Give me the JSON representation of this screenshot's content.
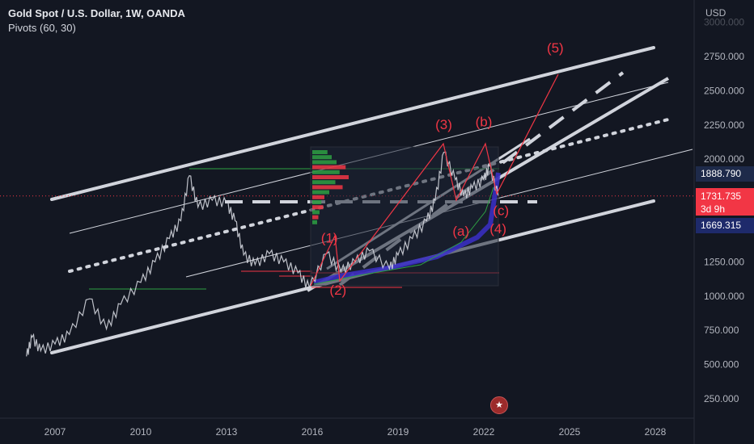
{
  "header": {
    "title": "Gold Spot / U.S. Dollar, 1W, OANDA",
    "indicator": "Pivots (60, 30)"
  },
  "price_axis": {
    "currency": "USD",
    "ticks": [
      "3000.000",
      "2750.000",
      "2500.000",
      "2250.000",
      "2000.000",
      "1750.000",
      "1500.000",
      "1250.000",
      "1000.000",
      "750.000",
      "500.000",
      "250.000"
    ]
  },
  "badges": {
    "pivot_upper": "1888.790",
    "price": "1731.735",
    "countdown": "3d 9h",
    "pivot_lower": "1669.315"
  },
  "colors": {
    "background": "#131722",
    "price_line": "#d1d4dc",
    "wave_labels": "#f23645",
    "channel": "#d1d4dc",
    "pivot_upper_badge": "#1e2a4a",
    "price_badge": "#f23645",
    "pivot_lower_badge": "#1e2a6b",
    "volume_up": "#2ea043",
    "volume_down": "#f23645",
    "indicator_band": "#3b2fc9"
  },
  "flag_icon": "us-flag-icon",
  "chart_data": {
    "type": "line",
    "title": "Gold Spot / U.S. Dollar, 1W, OANDA",
    "xlabel": "",
    "ylabel": "",
    "x_ticks": [
      "2007",
      "2010",
      "2013",
      "2016",
      "2019",
      "2022",
      "2025",
      "2028"
    ],
    "ylim": [
      100,
      3060
    ],
    "xlim": [
      2005.8,
      2029.3
    ],
    "grid": false,
    "series": [
      {
        "name": "",
        "x": [
          2006.0,
          2006.2,
          2006.5,
          2007.0,
          2007.5,
          2008.2,
          2008.8,
          2009.3,
          2010.0,
          2010.5,
          2011.0,
          2011.4,
          2011.7,
          2012.0,
          2012.5,
          2013.0,
          2013.3,
          2013.6,
          2014.0,
          2014.5,
          2015.0,
          2015.5,
          2015.9,
          2016.5,
          2017.0,
          2017.5,
          2018.0,
          2018.7,
          2019.0,
          2019.5,
          2020.0,
          2020.3,
          2020.6,
          2021.0,
          2021.3,
          2021.6,
          2022.0,
          2022.2,
          2022.5
        ],
        "y": [
          560,
          700,
          600,
          650,
          720,
          980,
          760,
          940,
          1100,
          1250,
          1420,
          1550,
          1880,
          1650,
          1700,
          1680,
          1550,
          1300,
          1230,
          1310,
          1250,
          1170,
          1060,
          1310,
          1180,
          1250,
          1330,
          1200,
          1300,
          1420,
          1550,
          1700,
          2050,
          1850,
          1730,
          1790,
          1850,
          1950,
          1735
        ]
      }
    ],
    "wave_labels": [
      {
        "label": "(1)",
        "x": 2016.6,
        "y": 1390
      },
      {
        "label": "(2)",
        "x": 2016.9,
        "y": 1010
      },
      {
        "label": "(3)",
        "x": 2020.6,
        "y": 2220
      },
      {
        "label": "(b)",
        "x": 2022.0,
        "y": 2240
      },
      {
        "label": "(a)",
        "x": 2021.2,
        "y": 1440
      },
      {
        "label": "(4)",
        "x": 2022.5,
        "y": 1460
      },
      {
        "label": "(c)",
        "x": 2022.6,
        "y": 1590
      },
      {
        "label": "(5)",
        "x": 2024.5,
        "y": 2780
      }
    ],
    "horizontal_levels": {
      "current_price": 1731.735,
      "pivot_upper": 1888.79,
      "pivot_lower": 1669.315
    }
  }
}
